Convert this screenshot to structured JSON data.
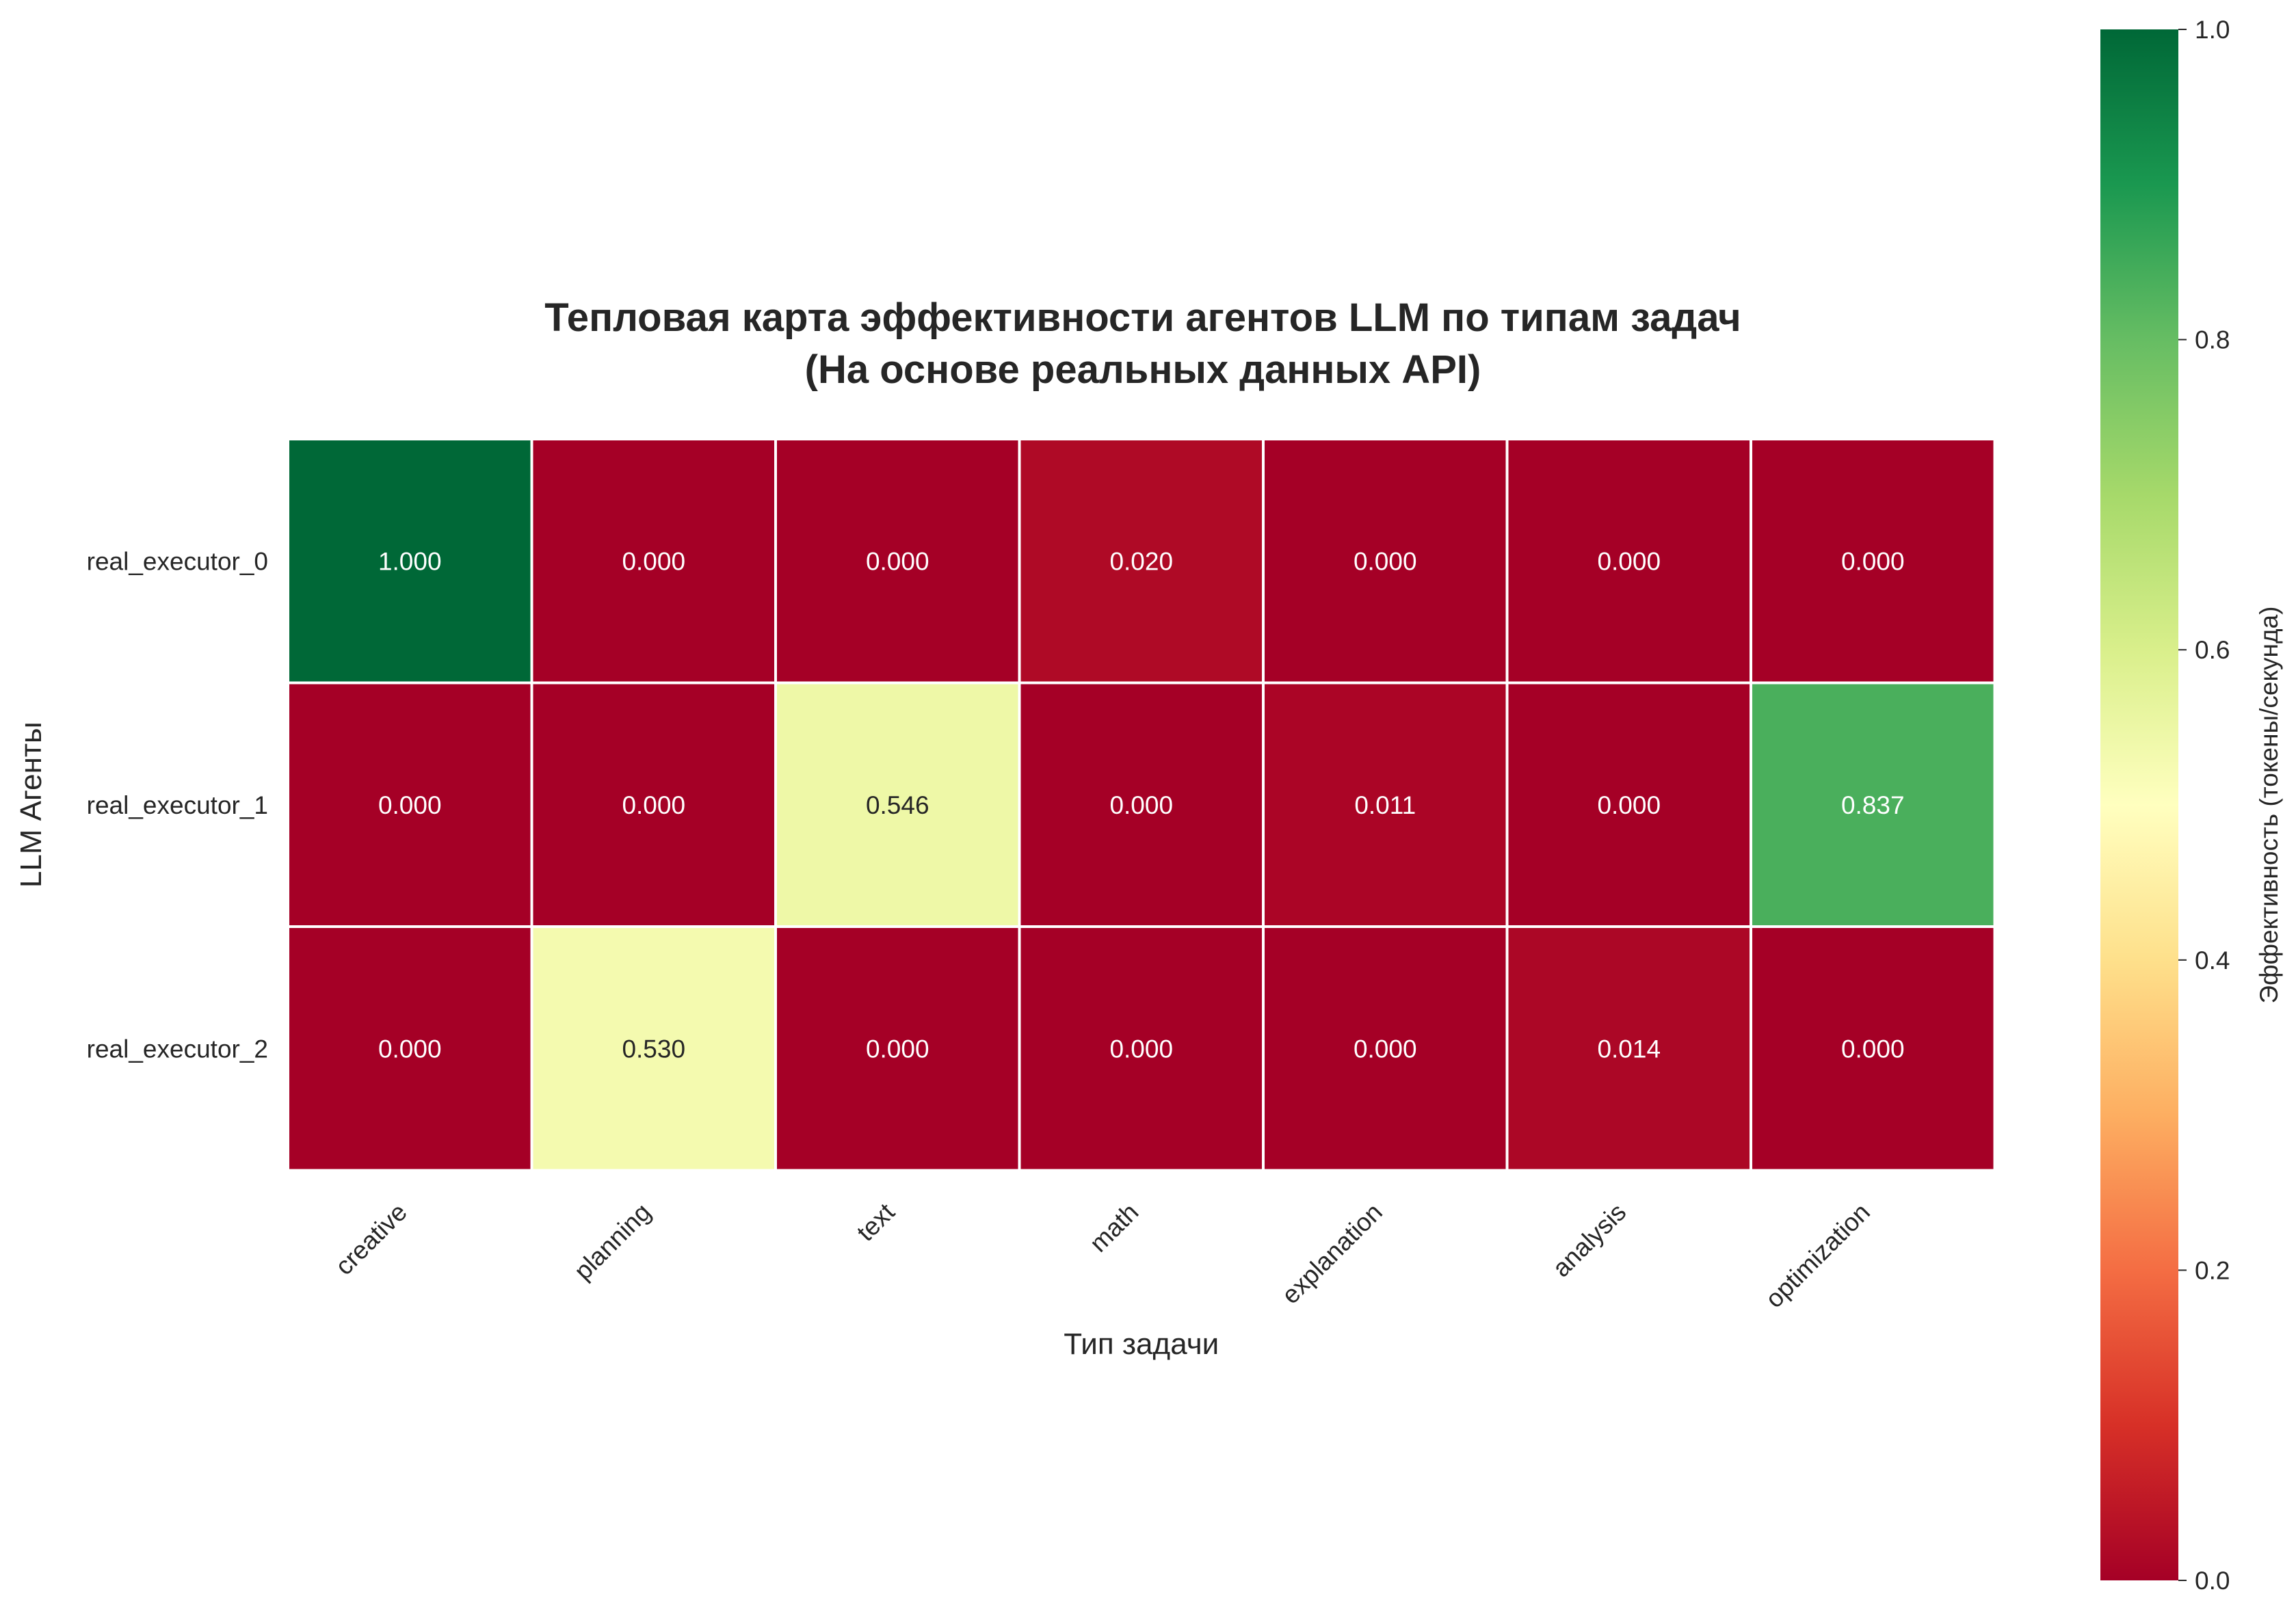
{
  "chart_data": {
    "type": "heatmap",
    "title": [
      "Тепловая карта эффективности агентов LLM по типам задач",
      "(На основе реальных данных API)"
    ],
    "xlabel": "Тип задачи",
    "ylabel": "LLM Агенты",
    "x_categories": [
      "creative",
      "planning",
      "text",
      "math",
      "explanation",
      "analysis",
      "optimization"
    ],
    "y_categories": [
      "real_executor_0",
      "real_executor_1",
      "real_executor_2"
    ],
    "values": [
      [
        1.0,
        0.0,
        0.0,
        0.02,
        0.0,
        0.0,
        0.0
      ],
      [
        0.0,
        0.0,
        0.546,
        0.0,
        0.011,
        0.0,
        0.837
      ],
      [
        0.0,
        0.53,
        0.0,
        0.0,
        0.0,
        0.014,
        0.0
      ]
    ],
    "cell_labels": [
      [
        "1.000",
        "0.000",
        "0.000",
        "0.020",
        "0.000",
        "0.000",
        "0.000"
      ],
      [
        "0.000",
        "0.000",
        "0.546",
        "0.000",
        "0.011",
        "0.000",
        "0.837"
      ],
      [
        "0.000",
        "0.530",
        "0.000",
        "0.000",
        "0.000",
        "0.014",
        "0.000"
      ]
    ],
    "colormap": "RdYlGn",
    "colorbar": {
      "label": "Эффективность (токены/секунда)",
      "range": [
        0,
        1
      ],
      "ticks": [
        0.0,
        0.2,
        0.4,
        0.6,
        0.8,
        1.0
      ],
      "tick_labels": [
        "0.0",
        "0.2",
        "0.4",
        "0.6",
        "0.8",
        "1.0"
      ]
    },
    "grid": true,
    "legend": "colorbar-right"
  }
}
